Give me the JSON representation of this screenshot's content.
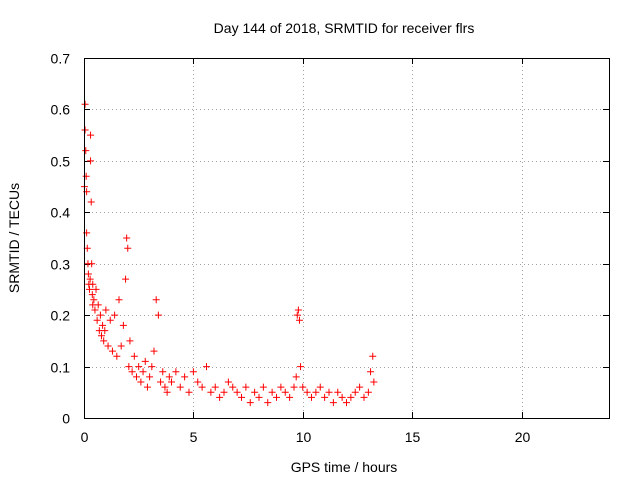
{
  "chart_data": {
    "type": "scatter",
    "title": "Day 144 of 2018, SRMTID for receiver flrs",
    "xlabel": "GPS time / hours",
    "ylabel": "SRMTID / TECUs",
    "xlim": [
      0,
      24
    ],
    "ylim": [
      0,
      0.7
    ],
    "x_ticks": [
      0,
      5,
      10,
      15,
      20
    ],
    "x_tick_labels": [
      "0",
      "5",
      "10",
      "15",
      "20"
    ],
    "y_ticks": [
      0,
      0.1,
      0.2,
      0.3,
      0.4,
      0.5,
      0.6,
      0.7
    ],
    "y_tick_labels": [
      "0",
      "0.1",
      "0.2",
      "0.3",
      "0.4",
      "0.5",
      "0.6",
      "0.7"
    ],
    "grid": true,
    "marker": "+",
    "series": [
      {
        "name": "flrs",
        "color": "#ff0000",
        "x": [
          0.02,
          0.05,
          0.05,
          0.08,
          0.1,
          0.12,
          0.12,
          0.15,
          0.18,
          0.2,
          0.22,
          0.25,
          0.28,
          0.3,
          0.3,
          0.33,
          0.35,
          0.38,
          0.4,
          0.4,
          0.45,
          0.5,
          0.55,
          0.6,
          0.65,
          0.7,
          0.75,
          0.8,
          0.85,
          0.9,
          0.95,
          1.0,
          1.1,
          1.2,
          1.3,
          1.4,
          1.5,
          1.6,
          1.7,
          1.8,
          1.9,
          1.95,
          2.0,
          2.05,
          2.1,
          2.2,
          2.3,
          2.4,
          2.5,
          2.6,
          2.7,
          2.8,
          2.9,
          3.0,
          3.1,
          3.2,
          3.3,
          3.4,
          3.5,
          3.6,
          3.7,
          3.8,
          3.9,
          4.0,
          4.2,
          4.4,
          4.6,
          4.8,
          5.0,
          5.2,
          5.4,
          5.6,
          5.8,
          6.0,
          6.2,
          6.4,
          6.6,
          6.8,
          7.0,
          7.2,
          7.4,
          7.6,
          7.8,
          8.0,
          8.2,
          8.4,
          8.6,
          8.8,
          9.0,
          9.2,
          9.4,
          9.6,
          9.7,
          9.75,
          9.8,
          9.85,
          9.9,
          10.0,
          10.2,
          10.4,
          10.6,
          10.8,
          11.0,
          11.2,
          11.4,
          11.6,
          11.8,
          12.0,
          12.2,
          12.4,
          12.6,
          12.8,
          13.0,
          13.1,
          13.2,
          13.25
        ],
        "y": [
          0.45,
          0.61,
          0.56,
          0.52,
          0.47,
          0.44,
          0.36,
          0.33,
          0.3,
          0.28,
          0.26,
          0.25,
          0.27,
          0.55,
          0.5,
          0.42,
          0.3,
          0.24,
          0.22,
          0.26,
          0.23,
          0.21,
          0.25,
          0.19,
          0.22,
          0.17,
          0.2,
          0.16,
          0.18,
          0.15,
          0.17,
          0.21,
          0.14,
          0.19,
          0.13,
          0.2,
          0.12,
          0.23,
          0.14,
          0.18,
          0.27,
          0.35,
          0.33,
          0.1,
          0.15,
          0.09,
          0.12,
          0.08,
          0.1,
          0.07,
          0.09,
          0.11,
          0.06,
          0.08,
          0.1,
          0.13,
          0.23,
          0.2,
          0.07,
          0.09,
          0.06,
          0.05,
          0.08,
          0.07,
          0.09,
          0.06,
          0.08,
          0.05,
          0.09,
          0.07,
          0.06,
          0.1,
          0.05,
          0.06,
          0.04,
          0.05,
          0.07,
          0.06,
          0.05,
          0.04,
          0.06,
          0.03,
          0.05,
          0.04,
          0.06,
          0.03,
          0.05,
          0.04,
          0.06,
          0.05,
          0.04,
          0.06,
          0.08,
          0.2,
          0.21,
          0.19,
          0.1,
          0.06,
          0.05,
          0.04,
          0.05,
          0.06,
          0.04,
          0.05,
          0.03,
          0.05,
          0.04,
          0.03,
          0.04,
          0.05,
          0.06,
          0.04,
          0.05,
          0.09,
          0.12,
          0.07
        ]
      }
    ]
  }
}
